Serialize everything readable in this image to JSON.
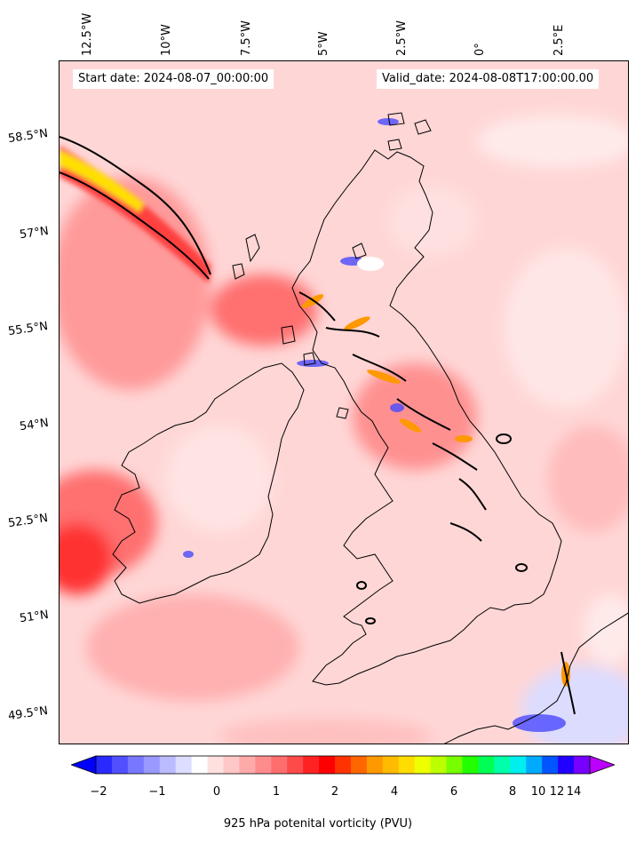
{
  "map": {
    "start_date": "Start date: 2024-08-07_00:00:00",
    "valid_date": "Valid_date: 2024-08-08T17:00:00.00",
    "longitude_labels": [
      "12.5°W",
      "10°W",
      "7.5°W",
      "5°W",
      "2.5°W",
      "0°",
      "2.5°E"
    ],
    "latitude_labels": [
      "58.5°N",
      "57°N",
      "55.5°N",
      "54°N",
      "52.5°N",
      "51°N",
      "49.5°N"
    ],
    "background_color": "#ffd0d0",
    "coastline_color": "#000000"
  },
  "colorbar": {
    "label": "925 hPa potenital vorticity (PVU)",
    "tick_labels": [
      "−2",
      "−1",
      "0",
      "1",
      "2",
      "4",
      "6",
      "8",
      "10",
      "12",
      "14"
    ],
    "extend": "both",
    "colors": [
      "#0000ff",
      "#2a2aff",
      "#5050ff",
      "#7777ff",
      "#9999ff",
      "#bbbbff",
      "#ddddff",
      "#ffffff",
      "#ffe0e0",
      "#ffc8c8",
      "#ffaaaa",
      "#ff8c8c",
      "#ff6e6e",
      "#ff4a4a",
      "#ff2222",
      "#ff0000",
      "#ff3300",
      "#ff6600",
      "#ff9900",
      "#ffbb00",
      "#ffdd00",
      "#eeff00",
      "#bbff00",
      "#77ff00",
      "#22ff00",
      "#00ff55",
      "#00ffaa",
      "#00eeee",
      "#00aaff",
      "#0055ff",
      "#2200ff",
      "#7700ff",
      "#bb00ff"
    ]
  }
}
